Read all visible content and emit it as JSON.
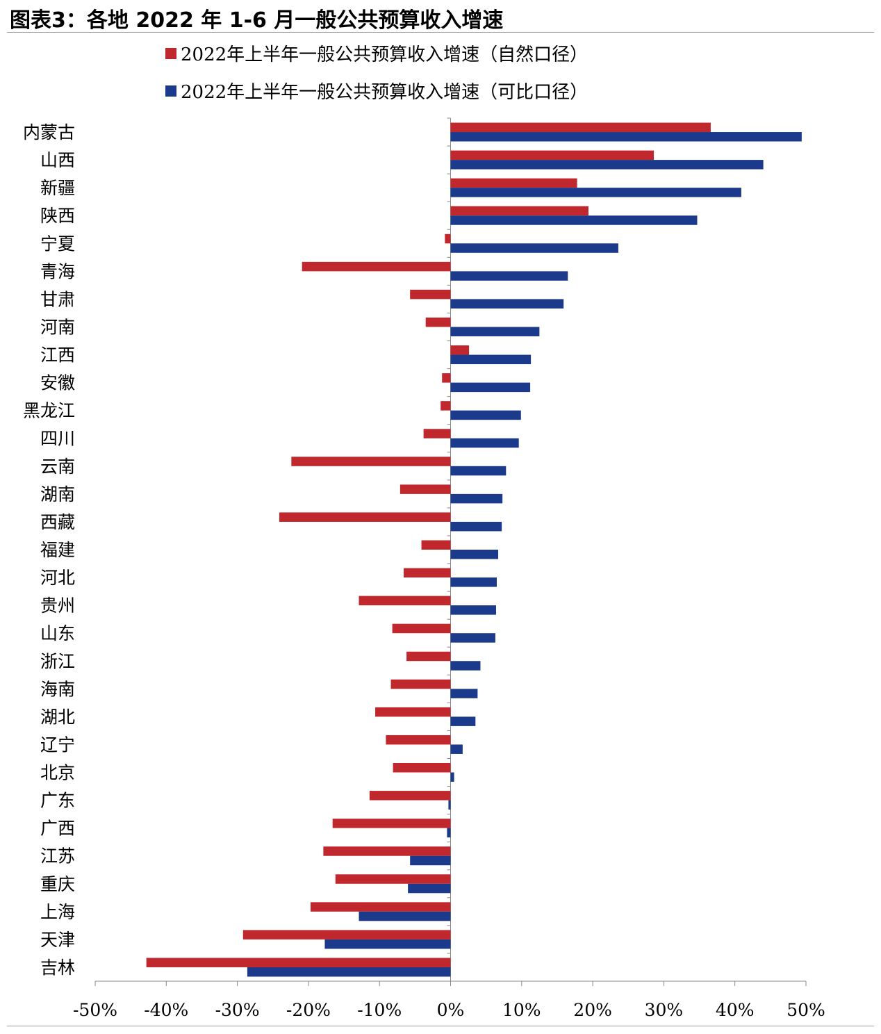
{
  "title": "图表3：各地 2022 年 1-6 月一般公共预算收入增速",
  "colors": {
    "natural": "#c0282d",
    "comparable": "#1c3a8c"
  },
  "chart_data": {
    "type": "bar",
    "orientation": "horizontal",
    "categories": [
      "内蒙古",
      "山西",
      "新疆",
      "陕西",
      "宁夏",
      "青海",
      "甘肃",
      "河南",
      "江西",
      "安徽",
      "黑龙江",
      "四川",
      "云南",
      "湖南",
      "西藏",
      "福建",
      "河北",
      "贵州",
      "山东",
      "浙江",
      "海南",
      "湖北",
      "辽宁",
      "北京",
      "广东",
      "广西",
      "江苏",
      "重庆",
      "上海",
      "天津",
      "吉林"
    ],
    "series": [
      {
        "name": "2022年上半年一般公共预算收入增速（自然口径）",
        "color": "#c0282d",
        "values": [
          36.6,
          28.6,
          17.8,
          19.4,
          -0.8,
          -20.9,
          -5.7,
          -3.5,
          2.6,
          -1.2,
          -1.4,
          -3.8,
          -22.4,
          -7.1,
          -24.1,
          -4.1,
          -6.6,
          -12.9,
          -8.2,
          -6.2,
          -8.4,
          -10.6,
          -9.1,
          -8.1,
          -11.4,
          -16.6,
          -17.9,
          -16.2,
          -19.7,
          -29.2,
          -42.8
        ]
      },
      {
        "name": "2022年上半年一般公共预算收入增速（可比口径）",
        "color": "#1c3a8c",
        "values": [
          49.4,
          44.0,
          40.9,
          34.7,
          23.6,
          16.5,
          15.9,
          12.5,
          11.3,
          11.2,
          9.9,
          9.6,
          7.8,
          7.3,
          7.2,
          6.7,
          6.5,
          6.4,
          6.3,
          4.2,
          3.8,
          3.5,
          1.7,
          0.5,
          -0.3,
          -0.5,
          -5.7,
          -6.0,
          -12.9,
          -17.7,
          -28.6
        ]
      }
    ],
    "xlim": [
      -50,
      50
    ],
    "xticks": [
      -50,
      -40,
      -30,
      -20,
      -10,
      0,
      10,
      20,
      30,
      40,
      50
    ],
    "xtick_labels": [
      "-50%",
      "-40%",
      "-30%",
      "-20%",
      "-10%",
      "0%",
      "10%",
      "20%",
      "30%",
      "40%",
      "50%"
    ],
    "grid": false,
    "legend_position": "top"
  }
}
